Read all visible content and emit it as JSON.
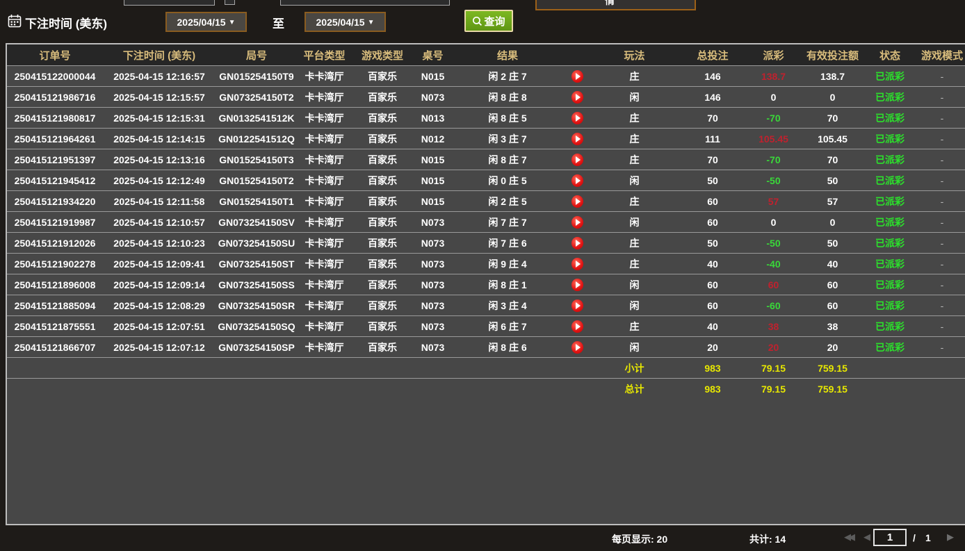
{
  "filters": {
    "bet_time_label": "下注时间 (美东)",
    "date_from": "2025/04/15",
    "to_label": "至",
    "date_to": "2025/04/15",
    "query_button": "查询",
    "chevron": "▼"
  },
  "table": {
    "columns": [
      "订单号",
      "下注时间 (美东)",
      "局号",
      "平台类型",
      "游戏类型",
      "桌号",
      "结果",
      "",
      "玩法",
      "总投注",
      "派彩",
      "有效投注额",
      "状态",
      "游戏模式"
    ],
    "rows": [
      {
        "order_id": "250415122000044",
        "bet_time": "2025-04-15 12:16:57",
        "round_id": "GN015254150T9",
        "platform": "卡卡湾厅",
        "game_type": "百家乐",
        "table_no": "N015",
        "result": "闲 2 庄 7",
        "play": "庄",
        "total_bet": "146",
        "payout": "138.7",
        "valid_bet": "138.7",
        "status": "已派彩",
        "mode": "-"
      },
      {
        "order_id": "250415121986716",
        "bet_time": "2025-04-15 12:15:57",
        "round_id": "GN073254150T2",
        "platform": "卡卡湾厅",
        "game_type": "百家乐",
        "table_no": "N073",
        "result": "闲 8 庄 8",
        "play": "闲",
        "total_bet": "146",
        "payout": "0",
        "valid_bet": "0",
        "status": "已派彩",
        "mode": "-"
      },
      {
        "order_id": "250415121980817",
        "bet_time": "2025-04-15 12:15:31",
        "round_id": "GN0132541512K",
        "platform": "卡卡湾厅",
        "game_type": "百家乐",
        "table_no": "N013",
        "result": "闲 8 庄 5",
        "play": "庄",
        "total_bet": "70",
        "payout": "-70",
        "valid_bet": "70",
        "status": "已派彩",
        "mode": "-"
      },
      {
        "order_id": "250415121964261",
        "bet_time": "2025-04-15 12:14:15",
        "round_id": "GN0122541512Q",
        "platform": "卡卡湾厅",
        "game_type": "百家乐",
        "table_no": "N012",
        "result": "闲 3 庄 7",
        "play": "庄",
        "total_bet": "111",
        "payout": "105.45",
        "valid_bet": "105.45",
        "status": "已派彩",
        "mode": "-"
      },
      {
        "order_id": "250415121951397",
        "bet_time": "2025-04-15 12:13:16",
        "round_id": "GN015254150T3",
        "platform": "卡卡湾厅",
        "game_type": "百家乐",
        "table_no": "N015",
        "result": "闲 8 庄 7",
        "play": "庄",
        "total_bet": "70",
        "payout": "-70",
        "valid_bet": "70",
        "status": "已派彩",
        "mode": "-"
      },
      {
        "order_id": "250415121945412",
        "bet_time": "2025-04-15 12:12:49",
        "round_id": "GN015254150T2",
        "platform": "卡卡湾厅",
        "game_type": "百家乐",
        "table_no": "N015",
        "result": "闲 0 庄 5",
        "play": "闲",
        "total_bet": "50",
        "payout": "-50",
        "valid_bet": "50",
        "status": "已派彩",
        "mode": "-"
      },
      {
        "order_id": "250415121934220",
        "bet_time": "2025-04-15 12:11:58",
        "round_id": "GN015254150T1",
        "platform": "卡卡湾厅",
        "game_type": "百家乐",
        "table_no": "N015",
        "result": "闲 2 庄 5",
        "play": "庄",
        "total_bet": "60",
        "payout": "57",
        "valid_bet": "57",
        "status": "已派彩",
        "mode": "-"
      },
      {
        "order_id": "250415121919987",
        "bet_time": "2025-04-15 12:10:57",
        "round_id": "GN073254150SV",
        "platform": "卡卡湾厅",
        "game_type": "百家乐",
        "table_no": "N073",
        "result": "闲 7 庄 7",
        "play": "闲",
        "total_bet": "60",
        "payout": "0",
        "valid_bet": "0",
        "status": "已派彩",
        "mode": "-"
      },
      {
        "order_id": "250415121912026",
        "bet_time": "2025-04-15 12:10:23",
        "round_id": "GN073254150SU",
        "platform": "卡卡湾厅",
        "game_type": "百家乐",
        "table_no": "N073",
        "result": "闲 7 庄 6",
        "play": "庄",
        "total_bet": "50",
        "payout": "-50",
        "valid_bet": "50",
        "status": "已派彩",
        "mode": "-"
      },
      {
        "order_id": "250415121902278",
        "bet_time": "2025-04-15 12:09:41",
        "round_id": "GN073254150ST",
        "platform": "卡卡湾厅",
        "game_type": "百家乐",
        "table_no": "N073",
        "result": "闲 9 庄 4",
        "play": "庄",
        "total_bet": "40",
        "payout": "-40",
        "valid_bet": "40",
        "status": "已派彩",
        "mode": "-"
      },
      {
        "order_id": "250415121896008",
        "bet_time": "2025-04-15 12:09:14",
        "round_id": "GN073254150SS",
        "platform": "卡卡湾厅",
        "game_type": "百家乐",
        "table_no": "N073",
        "result": "闲 8 庄 1",
        "play": "闲",
        "total_bet": "60",
        "payout": "60",
        "valid_bet": "60",
        "status": "已派彩",
        "mode": "-"
      },
      {
        "order_id": "250415121885094",
        "bet_time": "2025-04-15 12:08:29",
        "round_id": "GN073254150SR",
        "platform": "卡卡湾厅",
        "game_type": "百家乐",
        "table_no": "N073",
        "result": "闲 3 庄 4",
        "play": "闲",
        "total_bet": "60",
        "payout": "-60",
        "valid_bet": "60",
        "status": "已派彩",
        "mode": "-"
      },
      {
        "order_id": "250415121875551",
        "bet_time": "2025-04-15 12:07:51",
        "round_id": "GN073254150SQ",
        "platform": "卡卡湾厅",
        "game_type": "百家乐",
        "table_no": "N073",
        "result": "闲 6 庄 7",
        "play": "庄",
        "total_bet": "40",
        "payout": "38",
        "valid_bet": "38",
        "status": "已派彩",
        "mode": "-"
      },
      {
        "order_id": "250415121866707",
        "bet_time": "2025-04-15 12:07:12",
        "round_id": "GN073254150SP",
        "platform": "卡卡湾厅",
        "game_type": "百家乐",
        "table_no": "N073",
        "result": "闲 8 庄 6",
        "play": "闲",
        "total_bet": "20",
        "payout": "20",
        "valid_bet": "20",
        "status": "已派彩",
        "mode": "-"
      }
    ],
    "subtotal": {
      "label": "小计",
      "total_bet": "983",
      "payout": "79.15",
      "valid_bet": "759.15"
    },
    "grand_total": {
      "label": "总计",
      "total_bet": "983",
      "payout": "79.15",
      "valid_bet": "759.15"
    }
  },
  "pagination": {
    "per_page_label": "每页显示: 20",
    "total_label": "共计: 14",
    "first_icon": "◀◀",
    "prev_icon": "◀",
    "current_page": "1",
    "page_separator": "/",
    "total_pages": "1",
    "next_icon": "▶"
  },
  "colors": {
    "header_text": "#d8bc7c",
    "payout_positive": "#c0212e",
    "payout_negative": "#39d839",
    "payout_zero": "#ffffff",
    "status_green": "#2ce02c",
    "totals_yellow": "#e8e800",
    "query_green": "#6fae19",
    "date_border": "#8a5c20"
  }
}
